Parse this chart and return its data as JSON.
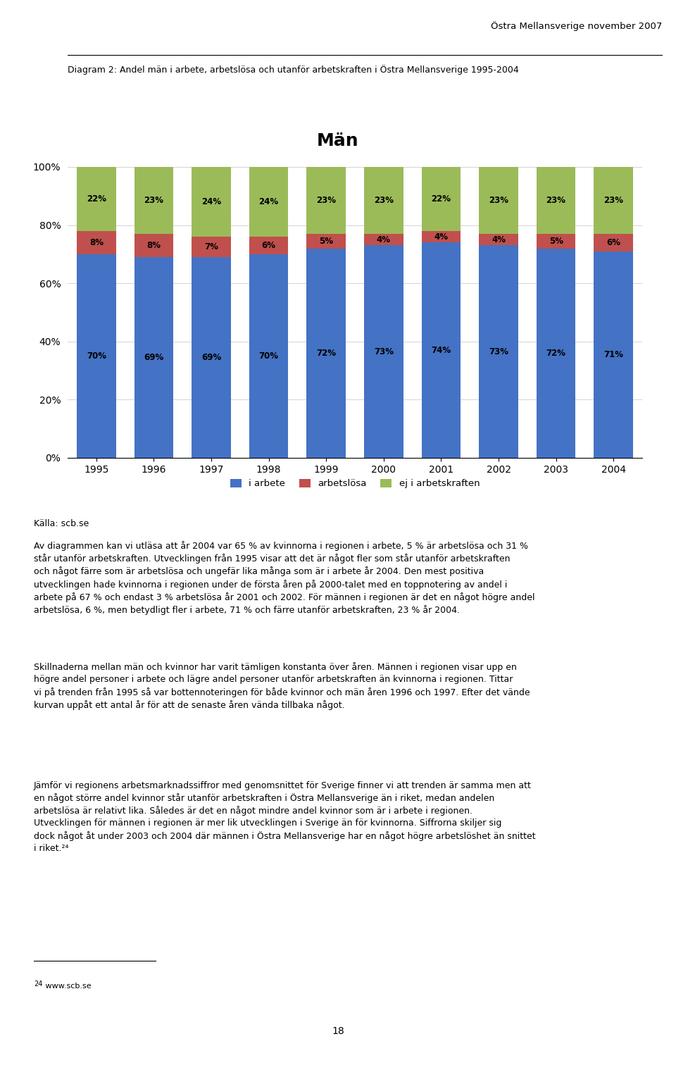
{
  "title_chart": "Män",
  "header_right": "Östra Mellansverige november 2007",
  "header_left": "Diagram 2: Andel män i arbete, arbetslösa och utanför arbetskraften i Östra Mellansverige 1995-2004",
  "years": [
    1995,
    1996,
    1997,
    1998,
    1999,
    2000,
    2001,
    2002,
    2003,
    2004
  ],
  "i_arbete": [
    70,
    69,
    69,
    70,
    72,
    73,
    74,
    73,
    72,
    71
  ],
  "arbetslosa": [
    8,
    8,
    7,
    6,
    5,
    4,
    4,
    4,
    5,
    6
  ],
  "ej_arbetskraft": [
    22,
    23,
    24,
    24,
    23,
    23,
    22,
    23,
    23,
    23
  ],
  "color_arbete": "#4472C4",
  "color_arbetslosa": "#C0504D",
  "color_ej": "#9BBB59",
  "legend_labels": [
    "i arbete",
    "arbetslösa",
    "ej i arbetskraften"
  ],
  "source_text": "Källa: scb.se",
  "body_text": "Av diagrammen kan vi utläsa att år 2004 var 65 % av kvinnorna i regionen i arbete, 5 % är arbetslösa och 31 % står utanför arbetskraften. Utvecklingen från 1995 visar att det är något fler som står utanför arbetskraften och något färre som är arbetslösa och ungefär lika många som är i arbete år 2004. Den mest positiva utvecklingen hade kvinnorna i regionen under de första åren på 2000-talet med en toppnotering av andel i arbete på 67 % och endast 3 % arbetslösa år 2001 och 2002. För männen i regionen är det en något högre andel arbetslösa, 6 %, men betydligt fler i arbete, 71 % och färre utanför arbetskraften, 23 % år 2004.",
  "body_text2": "Skillnaderna mellan män och kvinnor har varit tämligen konstanta över åren. Männen i regionen visar upp en högre andel personer i arbete och lägre andel personer utanför arbetskraften än kvinnorna i regionen. Tittar vi på trenden från 1995 så var bottennoteringen för både kvinnor och män åren 1996 och 1997. Efter det vände kurvan uppåt ett antal år för att de senaste åren vända tillbaka något.",
  "body_text3": "Jämför vi regionens arbetsmarknadssiffror med genomsnittet för Sverige finner vi att trenden är samma men att en något större andel kvinnor står utanför arbetskraften i Östra Mellansverige än i riket, medan andelen arbetslösa är relativt lika. Således är det en något mindre andel kvinnor som är i arbete i regionen. Utvecklingen för männen i regionen är mer lik utvecklingen i Sverige än för kvinnorna. Siffrorna skiljer sig dock något åt under 2003 och 2004 där männen i Östra Mellansverige har en något högre arbetslöshet än snittet i riket.²⁴",
  "footnote_super": "24",
  "footnote_text": " www.scb.se",
  "page_number": "18",
  "ylim": [
    0,
    100
  ],
  "yticks": [
    0,
    20,
    40,
    60,
    80,
    100
  ],
  "ytick_labels": [
    "0%",
    "20%",
    "40%",
    "60%",
    "80%",
    "100%"
  ]
}
